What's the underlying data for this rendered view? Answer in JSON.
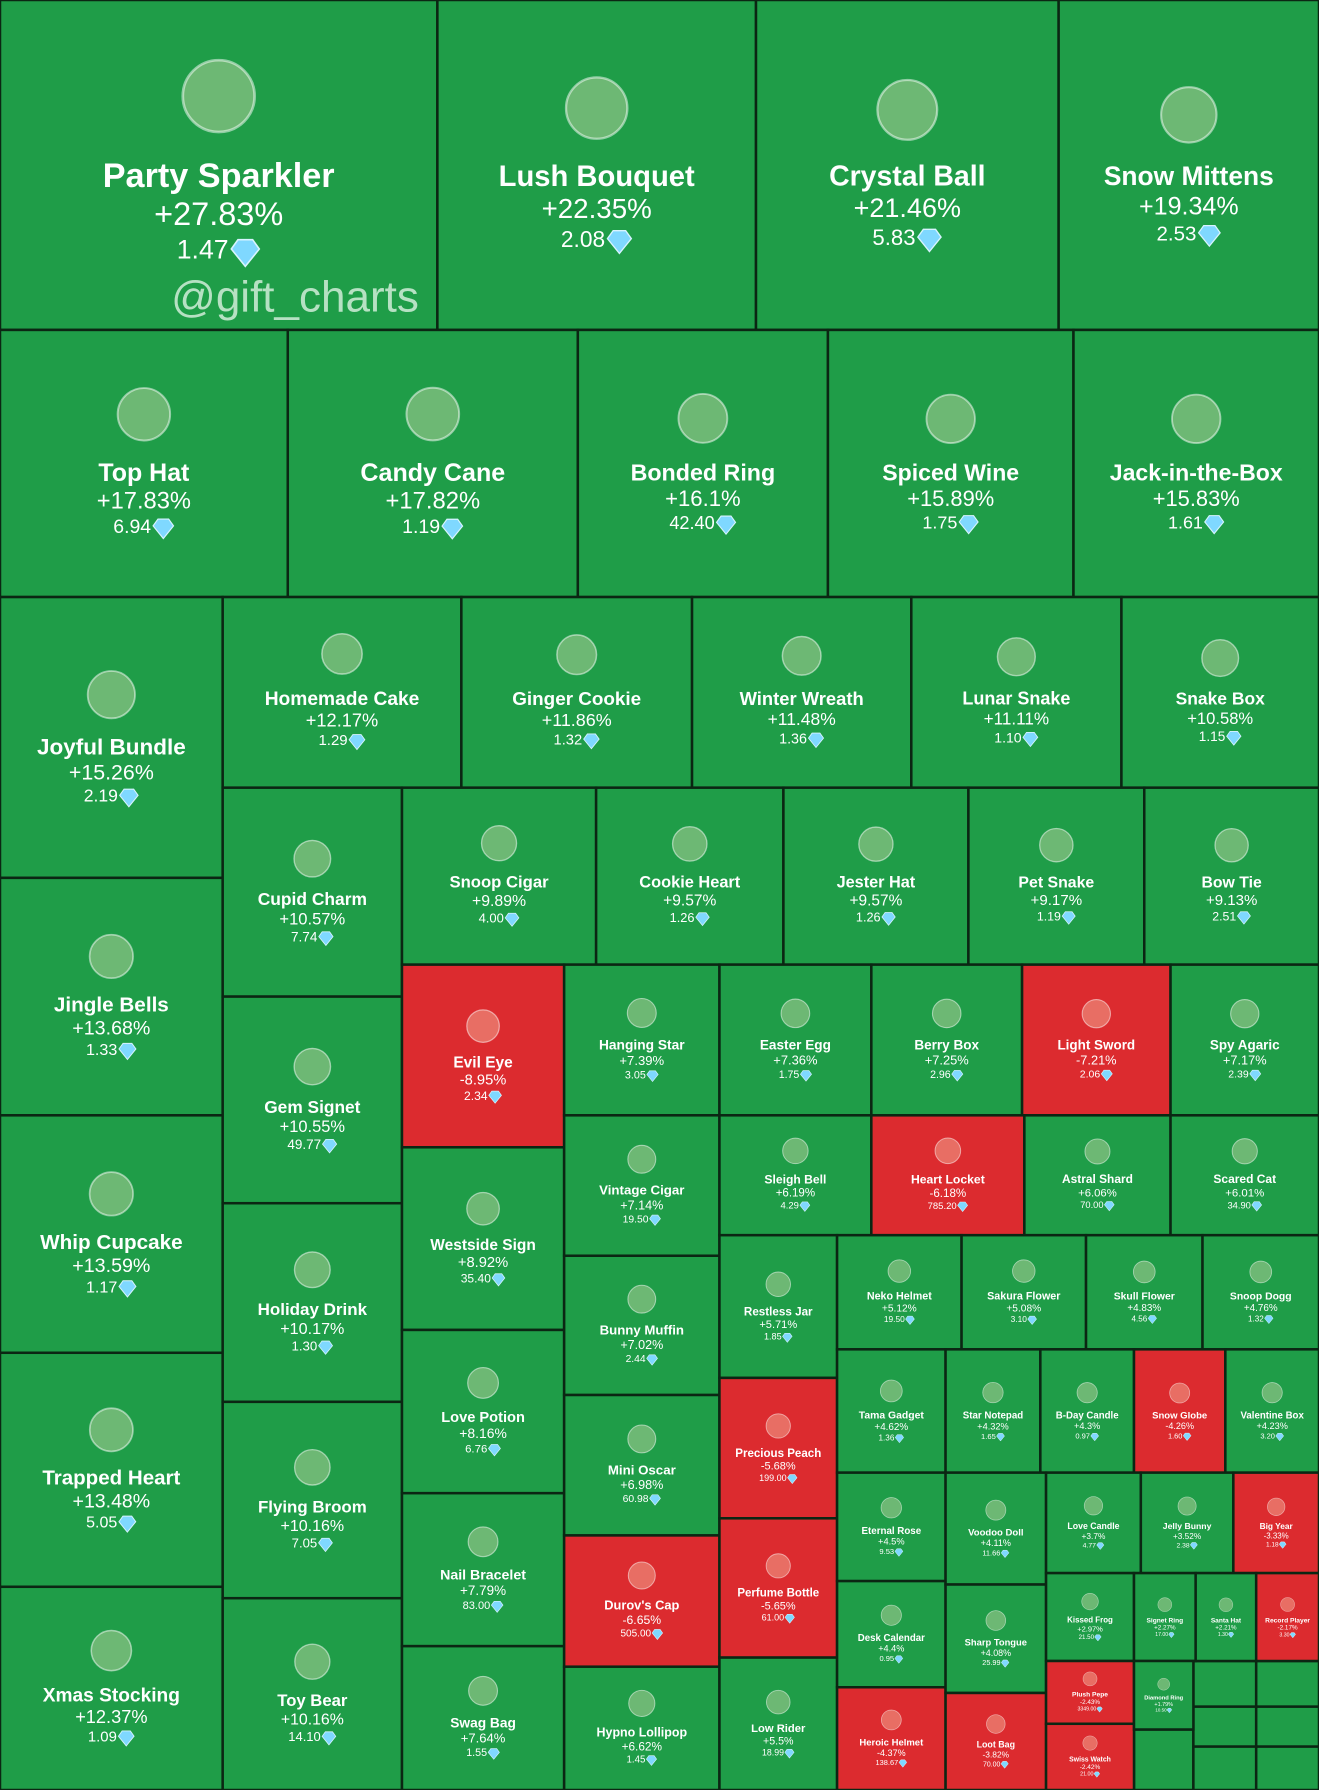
{
  "chart_data": {
    "type": "treemap",
    "watermark": "@gift_charts",
    "up_color": "#1f9d48",
    "down_color": "#dc2b2f",
    "categories": [
      "Party Sparkler",
      "Lush Bouquet",
      "Crystal Ball",
      "Snow Mittens",
      "Top Hat",
      "Candy Cane",
      "Bonded Ring",
      "Spiced Wine",
      "Jack-in-the-Box",
      "Joyful Bundle",
      "Jingle Bells",
      "Whip Cupcake",
      "Trapped Heart",
      "Xmas Stocking",
      "Homemade Cake",
      "Ginger Cookie",
      "Winter Wreath",
      "Lunar Snake",
      "Snake Box",
      "Cupid Charm",
      "Gem Signet",
      "Holiday Drink",
      "Flying Broom",
      "Toy Bear",
      "Snoop Cigar",
      "Cookie Heart",
      "Jester Hat",
      "Pet Snake",
      "Bow Tie",
      "Evil Eye",
      "Westside Sign",
      "Love Potion",
      "Nail Bracelet",
      "Swag Bag",
      "Hanging Star",
      "Easter Egg",
      "Berry Box",
      "Light Sword",
      "Spy Agaric",
      "Vintage Cigar",
      "Bunny Muffin",
      "Mini Oscar",
      "Durov's Cap",
      "Hypno Lollipop",
      "Sleigh Bell",
      "Heart Locket",
      "Astral Shard",
      "Scared Cat",
      "Restless Jar",
      "Precious Peach",
      "Perfume Bottle",
      "Low Rider",
      "Neko Helmet",
      "Sakura Flower",
      "Skull Flower",
      "Snoop Dogg",
      "Tama Gadget",
      "Star Notepad",
      "B-Day Candle",
      "Snow Globe",
      "Valentine Box",
      "Eternal Rose",
      "Desk Calendar",
      "Heroic Helmet",
      "Voodoo Doll",
      "Sharp Tongue",
      "Loot Bag",
      "Love Candle",
      "Jelly Bunny",
      "Big Year",
      "Kissed Frog",
      "Signet Ring",
      "Santa Hat",
      "Record Player",
      "Plush Pepe",
      "Swiss Watch",
      "Diamond Ring"
    ],
    "values": [
      27.83,
      22.35,
      21.46,
      19.34,
      17.83,
      17.82,
      16.1,
      15.89,
      15.83,
      15.26,
      13.68,
      13.59,
      13.48,
      12.37,
      12.17,
      11.86,
      11.48,
      11.11,
      10.58,
      10.57,
      10.55,
      10.17,
      10.16,
      10.16,
      9.89,
      9.57,
      9.57,
      9.17,
      9.13,
      -8.95,
      8.92,
      8.16,
      7.79,
      7.64,
      7.39,
      7.36,
      7.25,
      -7.21,
      7.17,
      7.14,
      7.02,
      6.98,
      -6.65,
      6.62,
      6.19,
      -6.18,
      6.06,
      6.01,
      5.71,
      -5.68,
      -5.65,
      5.5,
      5.12,
      5.08,
      4.83,
      4.76,
      4.62,
      4.32,
      4.3,
      -4.26,
      4.23,
      4.5,
      4.4,
      -4.37,
      4.11,
      4.08,
      -3.82,
      3.7,
      3.52,
      -3.33,
      2.97,
      2.27,
      2.21,
      -2.17,
      -2.43,
      -2.42,
      1.79
    ],
    "value_labels": [
      "+27.83%",
      "+22.35%",
      "+21.46%",
      "+19.34%",
      "+17.83%",
      "+17.82%",
      "+16.1%",
      "+15.89%",
      "+15.83%",
      "+15.26%",
      "+13.68%",
      "+13.59%",
      "+13.48%",
      "+12.37%",
      "+12.17%",
      "+11.86%",
      "+11.48%",
      "+11.11%",
      "+10.58%",
      "+10.57%",
      "+10.55%",
      "+10.17%",
      "+10.16%",
      "+10.16%",
      "+9.89%",
      "+9.57%",
      "+9.57%",
      "+9.17%",
      "+9.13%",
      "-8.95%",
      "+8.92%",
      "+8.16%",
      "+7.79%",
      "+7.64%",
      "+7.39%",
      "+7.36%",
      "+7.25%",
      "-7.21%",
      "+7.17%",
      "+7.14%",
      "+7.02%",
      "+6.98%",
      "-6.65%",
      "+6.62%",
      "+6.19%",
      "-6.18%",
      "+6.06%",
      "+6.01%",
      "+5.71%",
      "-5.68%",
      "-5.65%",
      "+5.5%",
      "+5.12%",
      "+5.08%",
      "+4.83%",
      "+4.76%",
      "+4.62%",
      "+4.32%",
      "+4.3%",
      "-4.26%",
      "+4.23%",
      "+4.5%",
      "+4.4%",
      "-4.37%",
      "+4.11%",
      "+4.08%",
      "-3.82%",
      "+3.7%",
      "+3.52%",
      "-3.33%",
      "+2.97%",
      "+2.27%",
      "+2.21%",
      "-2.17%",
      "-2.43%",
      "-2.42%",
      "+1.79%"
    ],
    "prices": [
      "1.47",
      "2.08",
      "5.83",
      "2.53",
      "6.94",
      "1.19",
      "42.40",
      "1.75",
      "1.61",
      "2.19",
      "1.33",
      "1.17",
      "5.05",
      "1.09",
      "1.29",
      "1.32",
      "1.36",
      "1.10",
      "1.15",
      "7.74",
      "49.77",
      "1.30",
      "7.05",
      "14.10",
      "4.00",
      "1.26",
      "1.26",
      "1.19",
      "2.51",
      "2.34",
      "35.40",
      "6.76",
      "83.00",
      "1.55",
      "3.05",
      "1.75",
      "2.96",
      "2.06",
      "2.39",
      "19.50",
      "2.44",
      "60.98",
      "505.00",
      "1.45",
      "4.29",
      "785.20",
      "70.00",
      "34.90",
      "1.85",
      "199.00",
      "61.00",
      "18.99",
      "19.50",
      "3.10",
      "4.56",
      "1.32",
      "1.36",
      "1.65",
      "0.97",
      "1.60",
      "3.20",
      "9.53",
      "0.95",
      "138.67",
      "11.66",
      "25.99",
      "70.00",
      "4.77",
      "2.38",
      "1.18",
      "21.50",
      "17.00",
      "1.30",
      "3.30",
      "3349.00",
      "21.00",
      "10.50"
    ]
  }
}
